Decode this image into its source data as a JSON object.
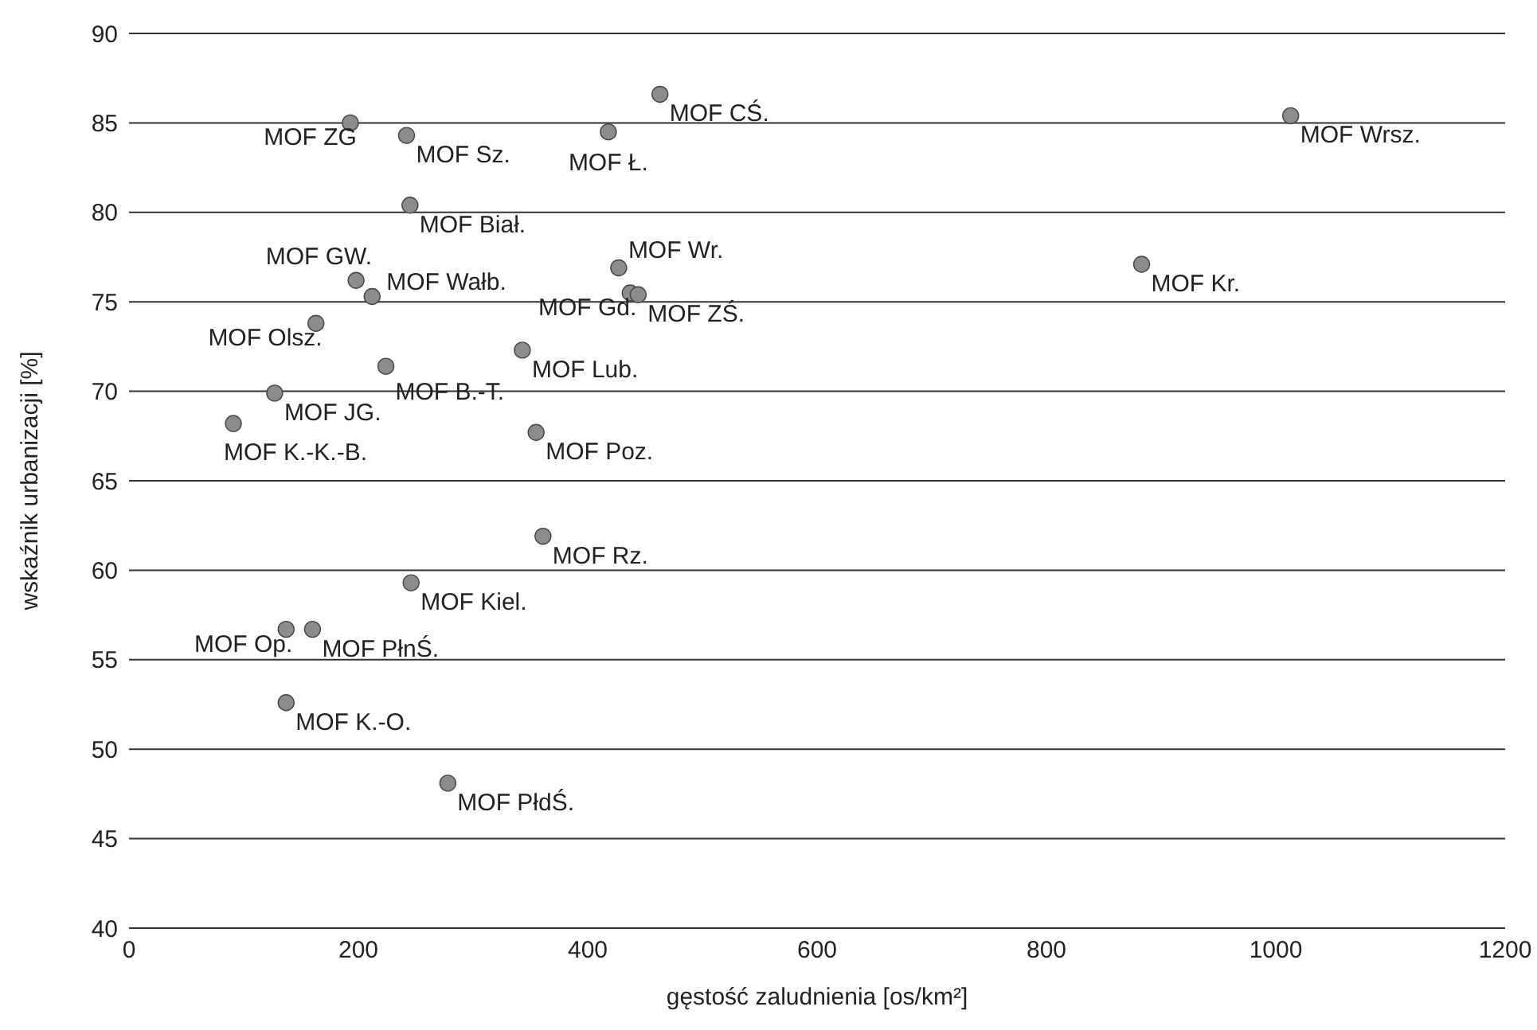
{
  "chart_data": {
    "type": "scatter",
    "xlabel": "gęstość zaludnienia [os/km²]",
    "ylabel": "wskaźnik urbanizacji [%]",
    "xlim": [
      0,
      1200
    ],
    "xticks": [
      0,
      200,
      400,
      600,
      800,
      1000,
      1200
    ],
    "ylim": [
      40,
      90
    ],
    "yticks": [
      40,
      45,
      50,
      55,
      60,
      65,
      70,
      75,
      80,
      85,
      90
    ],
    "grid": "y",
    "legend": false,
    "marker": "circle",
    "series": [
      {
        "color": "#8c8c8c",
        "x": [
          193,
          242,
          418,
          463,
          1013,
          245,
          198,
          212,
          427,
          437,
          444,
          883,
          163,
          343,
          224,
          127,
          91,
          355,
          361,
          246,
          137,
          160,
          137,
          278
        ],
        "values": [
          85.0,
          84.3,
          84.5,
          86.6,
          85.4,
          80.4,
          76.2,
          75.3,
          76.9,
          75.5,
          75.4,
          77.1,
          73.8,
          72.3,
          71.4,
          69.9,
          68.2,
          67.7,
          61.9,
          59.3,
          56.7,
          56.7,
          52.6,
          48.1
        ],
        "value_labels": [
          "MOF ZG",
          "MOF Sz.",
          "MOF Ł.",
          "MOF CŚ.",
          "MOF Wrsz.",
          "MOF Biał.",
          "MOF GW.",
          "MOF Wałb.",
          "MOF Wr.",
          "MOF Gd.",
          "MOF ZŚ.",
          "MOF Kr.",
          "MOF Olsz.",
          "MOF Lub.",
          "MOF B.-T.",
          "MOF JG.",
          "MOF K.-K.-B.",
          "MOF Poz.",
          "MOF Rz.",
          "MOF Kiel.",
          "MOF Op.",
          "MOF PłnŚ.",
          "MOF K.-O.",
          "MOF PłdŚ."
        ]
      }
    ]
  }
}
